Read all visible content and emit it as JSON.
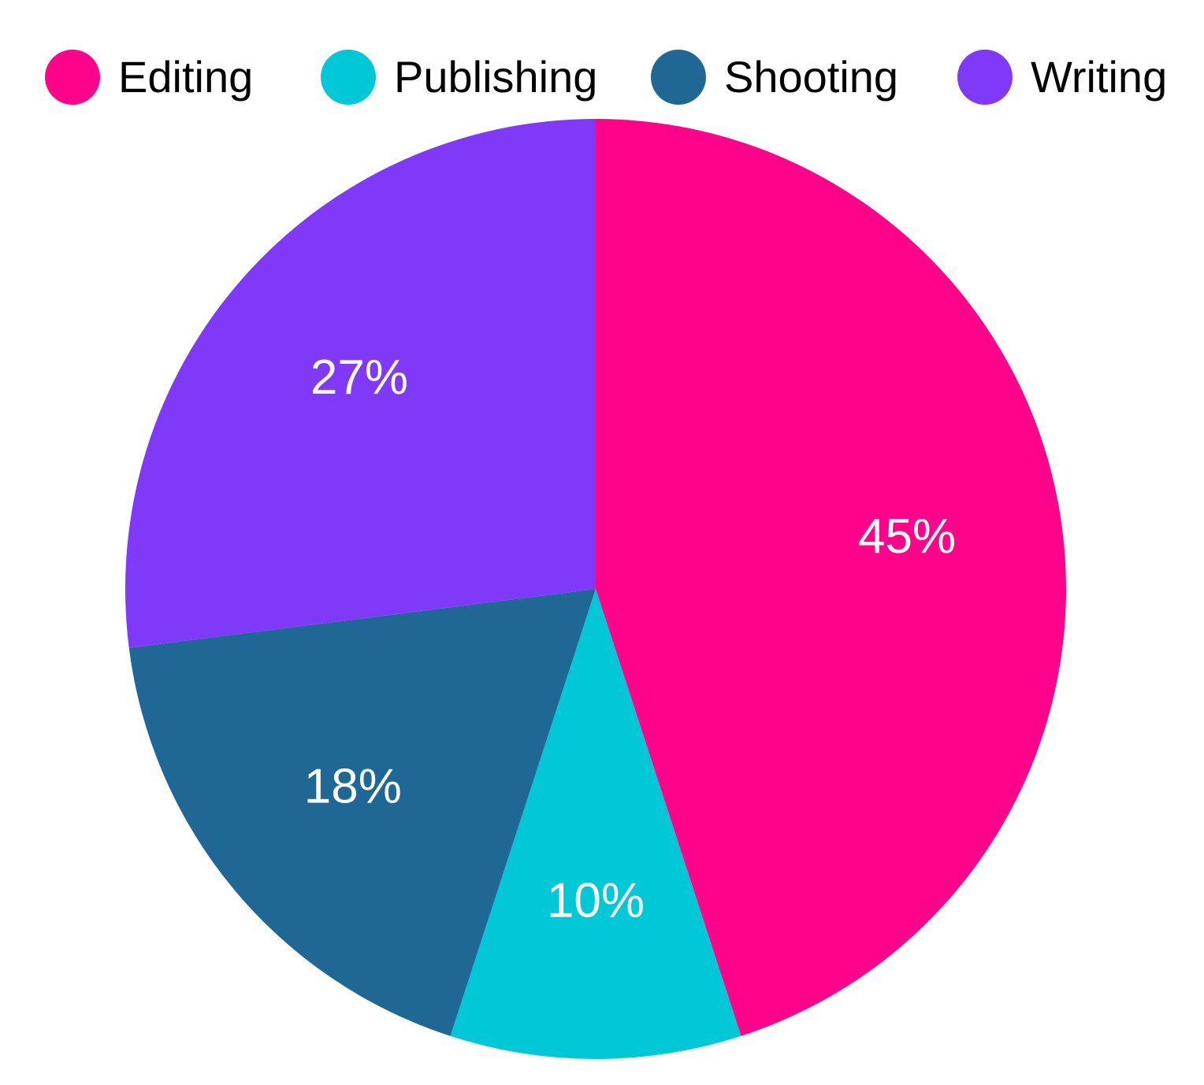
{
  "chart_data": {
    "type": "pie",
    "categories": [
      "Editing",
      "Publishing",
      "Shooting",
      "Writing"
    ],
    "values": [
      45,
      10,
      18,
      27
    ],
    "value_labels": [
      "45%",
      "10%",
      "18%",
      "27%"
    ],
    "colors": [
      "#ff038a",
      "#00c8d7",
      "#1f6895",
      "#8039f8"
    ],
    "legend": "top"
  }
}
